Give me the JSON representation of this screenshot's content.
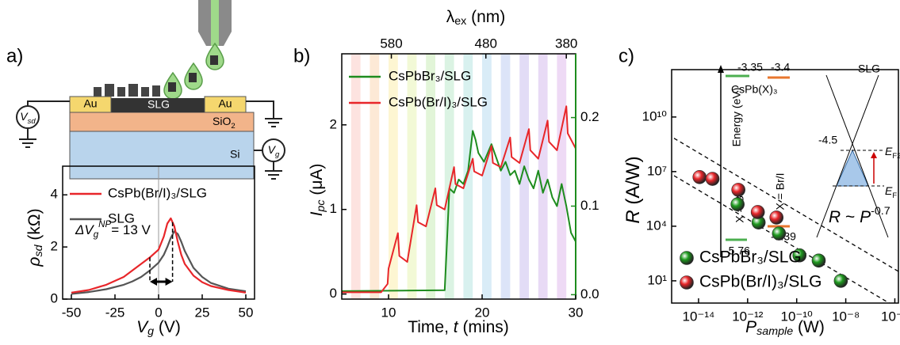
{
  "panel_labels": [
    "a)",
    "b)",
    "c)"
  ],
  "device": {
    "au_left": "Au",
    "slg": "SLG",
    "au_right": "Au",
    "sio2": [
      {
        "t": "SiO"
      },
      {
        "t": "2",
        "sub": true
      }
    ],
    "si": "Si",
    "vsd": [
      {
        "t": "V",
        "i": true
      },
      {
        "t": "sd",
        "sub": true,
        "i": true
      }
    ],
    "vg": [
      {
        "t": "V",
        "i": true
      },
      {
        "t": "g",
        "sub": true,
        "i": true
      }
    ]
  },
  "inset": {
    "slg": "SLG",
    "cb_br": "-3.35",
    "cb_bri": "-3.4",
    "material": "CsPb(X)₃",
    "energy": "Energy (eV)",
    "x_br": "X = Br",
    "x_bri": "X = Br/I",
    "dirac": "-4.5",
    "vb_bri": "-5.39",
    "vb_br": "-5.76",
    "ef2": [
      {
        "t": "E",
        "i": true
      },
      {
        "t": "F2",
        "sub": true
      }
    ],
    "ef": [
      {
        "t": "E",
        "i": true
      },
      {
        "t": "F",
        "sub": true
      }
    ]
  },
  "chart_data": [
    {
      "type": "line",
      "xlim": [
        -55,
        55
      ],
      "xticks": [
        -50,
        -25,
        0,
        25,
        50
      ],
      "ylim": [
        0,
        5.1
      ],
      "yticks": [
        0,
        2,
        4
      ],
      "xlabel": [
        {
          "t": "V",
          "i": true
        },
        {
          "t": "g",
          "sub": true,
          "i": true
        },
        {
          "t": " (V)"
        }
      ],
      "ylabel": [
        {
          "t": "ρ",
          "i": true
        },
        {
          "t": "sd",
          "sub": true,
          "i": true
        },
        {
          "t": " (kΩ)"
        }
      ],
      "x": [
        -50,
        -40,
        -30,
        -20,
        -15,
        -10,
        -5,
        0,
        3,
        5,
        7,
        9,
        11,
        13,
        15,
        20,
        25,
        30,
        40,
        50
      ],
      "series": [
        {
          "name": "CsPb(Br/I)₃/SLG",
          "color": "#e8262a",
          "values": [
            0.25,
            0.35,
            0.55,
            0.85,
            1.1,
            1.35,
            1.6,
            1.9,
            2.4,
            2.9,
            3.1,
            2.8,
            2.2,
            1.7,
            1.35,
            0.9,
            0.65,
            0.5,
            0.35,
            0.25
          ]
        },
        {
          "name": "SLG",
          "color": "#555555",
          "values": [
            0.2,
            0.27,
            0.38,
            0.55,
            0.68,
            0.85,
            1.1,
            1.4,
            1.7,
            2.0,
            2.35,
            2.6,
            2.5,
            2.2,
            1.85,
            1.2,
            0.85,
            0.62,
            0.4,
            0.3
          ]
        }
      ],
      "annotation": {
        "parts": [
          {
            "t": "ΔV",
            "i": true
          },
          {
            "t": "g",
            "sub": true,
            "i": true
          },
          {
            "t": "NP",
            "sup": true,
            "i": true
          },
          {
            "t": "= 13 V"
          }
        ],
        "from": -5,
        "to": 8
      }
    },
    {
      "type": "line",
      "xlim": [
        5,
        30
      ],
      "xticks": [
        10,
        20,
        30
      ],
      "ylim": [
        -0.06,
        2.84
      ],
      "yticks": [
        0,
        1,
        2
      ],
      "y2lim": [
        -0.005,
        0.272
      ],
      "y2ticks": [
        {
          "value": 0,
          "label": "0.0"
        },
        0.1,
        0.2
      ],
      "y2color": "#1e8c1e",
      "top_axis": {
        "label": [
          {
            "t": "λ"
          },
          {
            "t": "ex",
            "sub": true
          },
          {
            "t": " (nm)"
          }
        ],
        "ticks": [
          580,
          480,
          380
        ],
        "at": [
          10.3,
          20.4,
          29
        ]
      },
      "xlabel": [
        {
          "t": "Time, "
        },
        {
          "t": "t",
          "i": true
        },
        {
          "t": " (mins)"
        }
      ],
      "ylabel": [
        {
          "t": "I",
          "i": true
        },
        {
          "t": "pc",
          "sub": true,
          "i": true
        },
        {
          "t": " (μA)"
        }
      ],
      "bands": {
        "x": [
          6,
          8,
          10,
          12,
          14,
          16,
          18,
          20,
          22,
          24,
          26,
          28
        ],
        "width": 1,
        "colors": [
          "#fde3e0",
          "#fde9d6",
          "#fdf6d2",
          "#f2f9d6",
          "#e2f5d8",
          "#dbf3e3",
          "#d8f1ef",
          "#d9ecf7",
          "#dce4f8",
          "#e2dcf6",
          "#e8daf5",
          "#eedaf5"
        ]
      },
      "series": [
        {
          "name": "CsPbBr₃/SLG",
          "color": "#1e8c1e",
          "axis": "y2",
          "x": [
            5,
            16,
            16.2,
            16.5,
            17,
            17.5,
            18,
            18.5,
            19,
            19.3,
            19.6,
            20.2,
            21,
            21.5,
            22,
            22.5,
            23,
            23.5,
            24,
            24.5,
            25,
            25.5,
            26,
            26.5,
            27,
            27.5,
            28,
            28.5,
            29,
            29.5,
            30
          ],
          "values": [
            0.004,
            0.005,
            0.05,
            0.12,
            0.115,
            0.13,
            0.125,
            0.14,
            0.185,
            0.175,
            0.16,
            0.15,
            0.17,
            0.155,
            0.14,
            0.15,
            0.135,
            0.14,
            0.125,
            0.145,
            0.13,
            0.12,
            0.14,
            0.115,
            0.13,
            0.11,
            0.1,
            0.125,
            0.1,
            0.07,
            0.06
          ]
        },
        {
          "name": "CsPb(Br/I)₃/SLG",
          "color": "#e8262a",
          "x": [
            5,
            9.2,
            9.9,
            10,
            11,
            11.15,
            12,
            13,
            13.15,
            14,
            15,
            15.15,
            16,
            17,
            17.15,
            18,
            19,
            19.15,
            20,
            21,
            21.15,
            22,
            23,
            23.15,
            24,
            25,
            25.15,
            26,
            27,
            27.15,
            28,
            29,
            29.15,
            30
          ],
          "values": [
            0.02,
            0.02,
            0.12,
            0.3,
            0.72,
            0.45,
            0.38,
            1.05,
            0.85,
            0.8,
            1.25,
            1.05,
            1.0,
            1.5,
            1.3,
            1.25,
            1.6,
            1.45,
            1.4,
            1.75,
            1.55,
            1.5,
            1.85,
            1.62,
            1.55,
            1.95,
            1.7,
            1.6,
            2.05,
            1.8,
            1.7,
            2.22,
            1.9,
            1.72
          ]
        }
      ]
    },
    {
      "type": "scatter",
      "log_x": true,
      "log_y": true,
      "xlim": [
        8e-16,
        1.4e-06
      ],
      "ylim": [
        0.6,
        4000000000000.0
      ],
      "xticks": [
        {
          "value": 1e-14,
          "label": "10⁻¹⁴"
        },
        {
          "value": 1e-12,
          "label": "10⁻¹²"
        },
        {
          "value": 1e-10,
          "label": "10⁻¹⁰"
        },
        {
          "value": 1e-08,
          "label": "10⁻⁸"
        },
        {
          "value": 1e-06,
          "label": "10⁻⁶"
        }
      ],
      "yticks": [
        {
          "value": 10,
          "label": "10¹"
        },
        {
          "value": 10000,
          "label": "10⁴"
        },
        {
          "value": 10000000,
          "label": "10⁷"
        },
        {
          "value": 10000000000,
          "label": "10¹⁰"
        }
      ],
      "xlabel": [
        {
          "t": "P",
          "i": true
        },
        {
          "t": "sample",
          "sub": true,
          "i": true
        },
        {
          "t": " (W)"
        }
      ],
      "ylabel": [
        {
          "t": "R",
          "i": true
        },
        {
          "t": " (A/W)"
        }
      ],
      "fit_label": [
        {
          "t": "R",
          "i": true
        },
        {
          "t": " ~ "
        },
        {
          "t": "P",
          "i": true
        },
        {
          "t": "-0.7",
          "sup": true
        }
      ],
      "fits": [
        {
          "x": [
            1e-15,
            1.4e-06
          ],
          "values": [
            680000000,
            33
          ]
        },
        {
          "x": [
            1e-15,
            1.4e-06
          ],
          "values": [
            6000000,
            0.3
          ]
        }
      ],
      "series": [
        {
          "name": "CsPbBr₃/SLG",
          "color": "#1e9a1e",
          "x": [
            3.9e-13,
            2.8e-12,
            1.9e-11,
            1.3e-10,
            7.9e-10,
            6.3e-09
          ],
          "values": [
            160000,
            16000,
            4000,
            250,
            130,
            10
          ]
        },
        {
          "name": "CsPb(Br/I)₃/SLG",
          "color": "#e8262a",
          "x": [
            1.1e-14,
            3.7e-14,
            4.2e-13,
            2.6e-12,
            1.5e-11
          ],
          "values": [
            5000000,
            4000000,
            1000000,
            60000,
            30000
          ]
        }
      ]
    }
  ]
}
